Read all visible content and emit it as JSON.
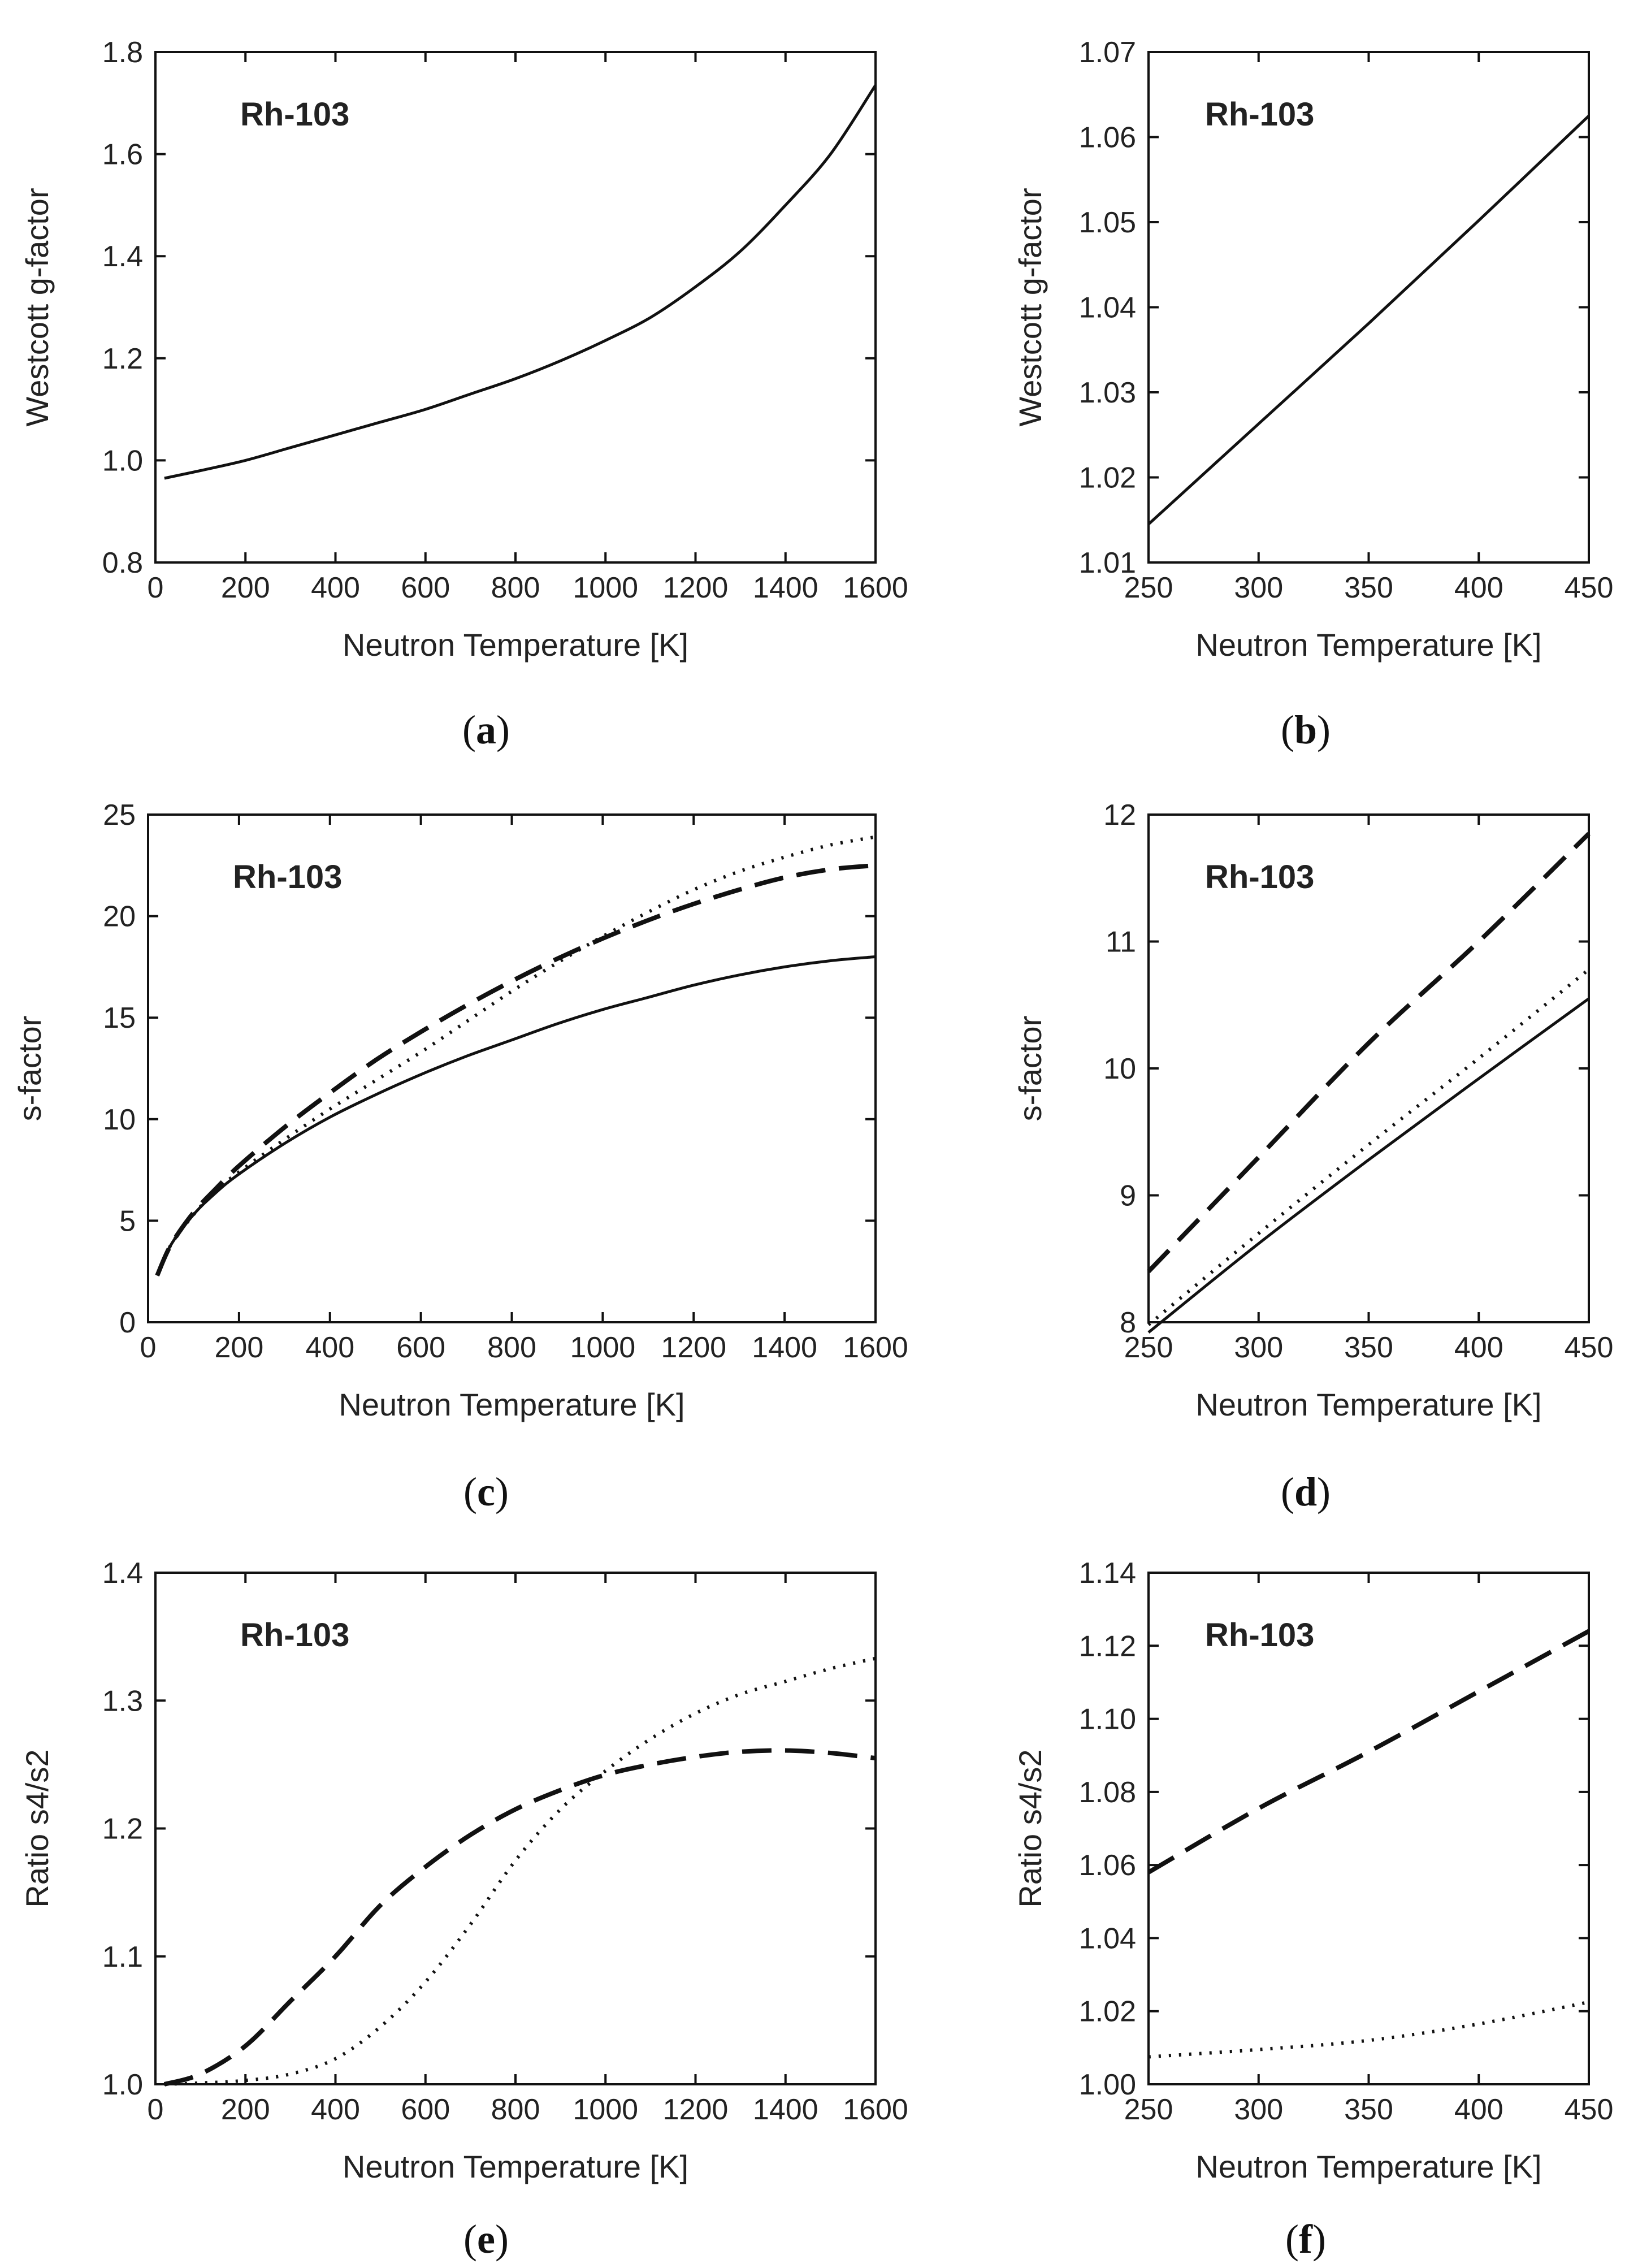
{
  "figure": {
    "panel_captions": [
      {
        "open": "(",
        "letter": "a",
        "close": ")"
      },
      {
        "open": "(",
        "letter": "b",
        "close": ")"
      },
      {
        "open": "(",
        "letter": "c",
        "close": ")"
      },
      {
        "open": "(",
        "letter": "d",
        "close": ")"
      },
      {
        "open": "(",
        "letter": "e",
        "close": ")"
      },
      {
        "open": "(",
        "letter": "f",
        "close": ")"
      }
    ]
  },
  "chart_data": [
    {
      "panel": "a",
      "type": "line",
      "annotation": "Rh-103",
      "xlabel": "Neutron Temperature [K]",
      "ylabel": "Westcott g-factor",
      "xlim": [
        0,
        1600
      ],
      "ylim": [
        0.8,
        1.8
      ],
      "xticks": [
        "0",
        "200",
        "400",
        "600",
        "800",
        "1000",
        "1200",
        "1400",
        "1600"
      ],
      "yticks": [
        "0.8",
        "1.0",
        "1.2",
        "1.4",
        "1.6",
        "1.8"
      ],
      "series": [
        {
          "name": "g-factor",
          "style": "solid",
          "x": [
            20,
            100,
            200,
            300,
            400,
            500,
            600,
            700,
            800,
            900,
            1000,
            1100,
            1200,
            1300,
            1400,
            1500,
            1600
          ],
          "y": [
            0.965,
            0.98,
            1.0,
            1.025,
            1.05,
            1.075,
            1.1,
            1.13,
            1.16,
            1.195,
            1.235,
            1.28,
            1.34,
            1.41,
            1.5,
            1.6,
            1.735
          ]
        }
      ]
    },
    {
      "panel": "b",
      "type": "line",
      "annotation": "Rh-103",
      "xlabel": "Neutron Temperature [K]",
      "ylabel": "Westcott g-factor",
      "xlim": [
        250,
        450
      ],
      "ylim": [
        1.01,
        1.07
      ],
      "xticks": [
        "250",
        "300",
        "350",
        "400",
        "450"
      ],
      "yticks": [
        "1.01",
        "1.02",
        "1.03",
        "1.04",
        "1.05",
        "1.06",
        "1.07"
      ],
      "series": [
        {
          "name": "g-factor",
          "style": "solid",
          "x": [
            250,
            300,
            350,
            400,
            450
          ],
          "y": [
            1.0145,
            1.0263,
            1.0381,
            1.0502,
            1.0625
          ]
        }
      ]
    },
    {
      "panel": "c",
      "type": "line",
      "annotation": "Rh-103",
      "xlabel": "Neutron Temperature [K]",
      "ylabel": "s-factor",
      "xlim": [
        0,
        1600
      ],
      "ylim": [
        0,
        25
      ],
      "xticks": [
        "0",
        "200",
        "400",
        "600",
        "800",
        "1000",
        "1200",
        "1400",
        "1600"
      ],
      "yticks": [
        "0",
        "5",
        "10",
        "15",
        "20",
        "25"
      ],
      "series": [
        {
          "name": "solid",
          "style": "solid",
          "x": [
            20,
            50,
            100,
            150,
            200,
            300,
            400,
            500,
            600,
            700,
            800,
            900,
            1000,
            1100,
            1200,
            1300,
            1400,
            1500,
            1600
          ],
          "y": [
            2.3,
            3.8,
            5.3,
            6.4,
            7.3,
            8.8,
            10.1,
            11.2,
            12.2,
            13.1,
            13.9,
            14.7,
            15.4,
            16.0,
            16.6,
            17.1,
            17.5,
            17.8,
            18.0
          ]
        },
        {
          "name": "dashed",
          "style": "dashed",
          "x": [
            20,
            50,
            100,
            150,
            200,
            300,
            400,
            500,
            600,
            700,
            800,
            900,
            1000,
            1100,
            1200,
            1300,
            1400,
            1500,
            1600
          ],
          "y": [
            2.3,
            3.8,
            5.4,
            6.6,
            7.7,
            9.6,
            11.3,
            12.9,
            14.3,
            15.6,
            16.8,
            17.9,
            18.9,
            19.8,
            20.6,
            21.3,
            21.9,
            22.3,
            22.5
          ]
        },
        {
          "name": "dotted",
          "style": "dotted",
          "x": [
            20,
            50,
            100,
            150,
            200,
            300,
            400,
            500,
            600,
            700,
            800,
            900,
            1000,
            1100,
            1200,
            1300,
            1400,
            1500,
            1600
          ],
          "y": [
            2.3,
            3.8,
            5.3,
            6.5,
            7.4,
            9.0,
            10.5,
            11.9,
            13.3,
            14.8,
            16.3,
            17.7,
            19.0,
            20.2,
            21.3,
            22.2,
            22.9,
            23.5,
            23.9
          ]
        }
      ]
    },
    {
      "panel": "d",
      "type": "line",
      "annotation": "Rh-103",
      "xlabel": "Neutron Temperature [K]",
      "ylabel": "s-factor",
      "xlim": [
        250,
        450
      ],
      "ylim": [
        8,
        12
      ],
      "xticks": [
        "250",
        "300",
        "350",
        "400",
        "450"
      ],
      "yticks": [
        "8",
        "9",
        "10",
        "11",
        "12"
      ],
      "series": [
        {
          "name": "solid",
          "style": "solid",
          "x": [
            250,
            300,
            350,
            400,
            450
          ],
          "y": [
            7.92,
            8.62,
            9.28,
            9.92,
            10.55
          ]
        },
        {
          "name": "dashed",
          "style": "dashed",
          "x": [
            250,
            300,
            350,
            400,
            450
          ],
          "y": [
            8.4,
            9.3,
            10.2,
            11.0,
            11.85
          ]
        },
        {
          "name": "dotted",
          "style": "dotted",
          "x": [
            250,
            300,
            350,
            400,
            450
          ],
          "y": [
            7.98,
            8.7,
            9.4,
            10.08,
            10.78
          ]
        }
      ]
    },
    {
      "panel": "e",
      "type": "line",
      "annotation": "Rh-103",
      "xlabel": "Neutron Temperature [K]",
      "ylabel": "Ratio s4/s2",
      "xlim": [
        0,
        1600
      ],
      "ylim": [
        1.0,
        1.4
      ],
      "xticks": [
        "0",
        "200",
        "400",
        "600",
        "800",
        "1000",
        "1200",
        "1400",
        "1600"
      ],
      "yticks": [
        "1.0",
        "1.1",
        "1.2",
        "1.3",
        "1.4"
      ],
      "series": [
        {
          "name": "dashed",
          "style": "dashed",
          "x": [
            20,
            100,
            200,
            300,
            400,
            500,
            600,
            700,
            800,
            900,
            1000,
            1100,
            1200,
            1300,
            1400,
            1500,
            1600
          ],
          "y": [
            1.0,
            1.008,
            1.03,
            1.065,
            1.1,
            1.14,
            1.17,
            1.195,
            1.215,
            1.23,
            1.242,
            1.25,
            1.256,
            1.26,
            1.261,
            1.259,
            1.255
          ]
        },
        {
          "name": "dotted",
          "style": "dotted",
          "x": [
            20,
            100,
            200,
            300,
            400,
            500,
            600,
            700,
            800,
            900,
            1000,
            1100,
            1200,
            1300,
            1400,
            1500,
            1600
          ],
          "y": [
            1.0,
            1.001,
            1.003,
            1.008,
            1.02,
            1.045,
            1.08,
            1.125,
            1.175,
            1.215,
            1.245,
            1.27,
            1.29,
            1.305,
            1.315,
            1.325,
            1.333
          ]
        }
      ]
    },
    {
      "panel": "f",
      "type": "line",
      "annotation": "Rh-103",
      "xlabel": "Neutron Temperature [K]",
      "ylabel": "Ratio s4/s2",
      "xlim": [
        250,
        450
      ],
      "ylim": [
        1.0,
        1.14
      ],
      "xticks": [
        "250",
        "300",
        "350",
        "400",
        "450"
      ],
      "yticks": [
        "1.00",
        "1.02",
        "1.04",
        "1.06",
        "1.08",
        "1.10",
        "1.12",
        "1.14"
      ],
      "series": [
        {
          "name": "dashed",
          "style": "dashed",
          "x": [
            250,
            300,
            350,
            400,
            450
          ],
          "y": [
            1.058,
            1.0755,
            1.091,
            1.1075,
            1.124
          ]
        },
        {
          "name": "dotted",
          "style": "dotted",
          "x": [
            250,
            300,
            350,
            400,
            450
          ],
          "y": [
            1.0075,
            1.0095,
            1.012,
            1.0165,
            1.0225
          ]
        }
      ]
    }
  ]
}
